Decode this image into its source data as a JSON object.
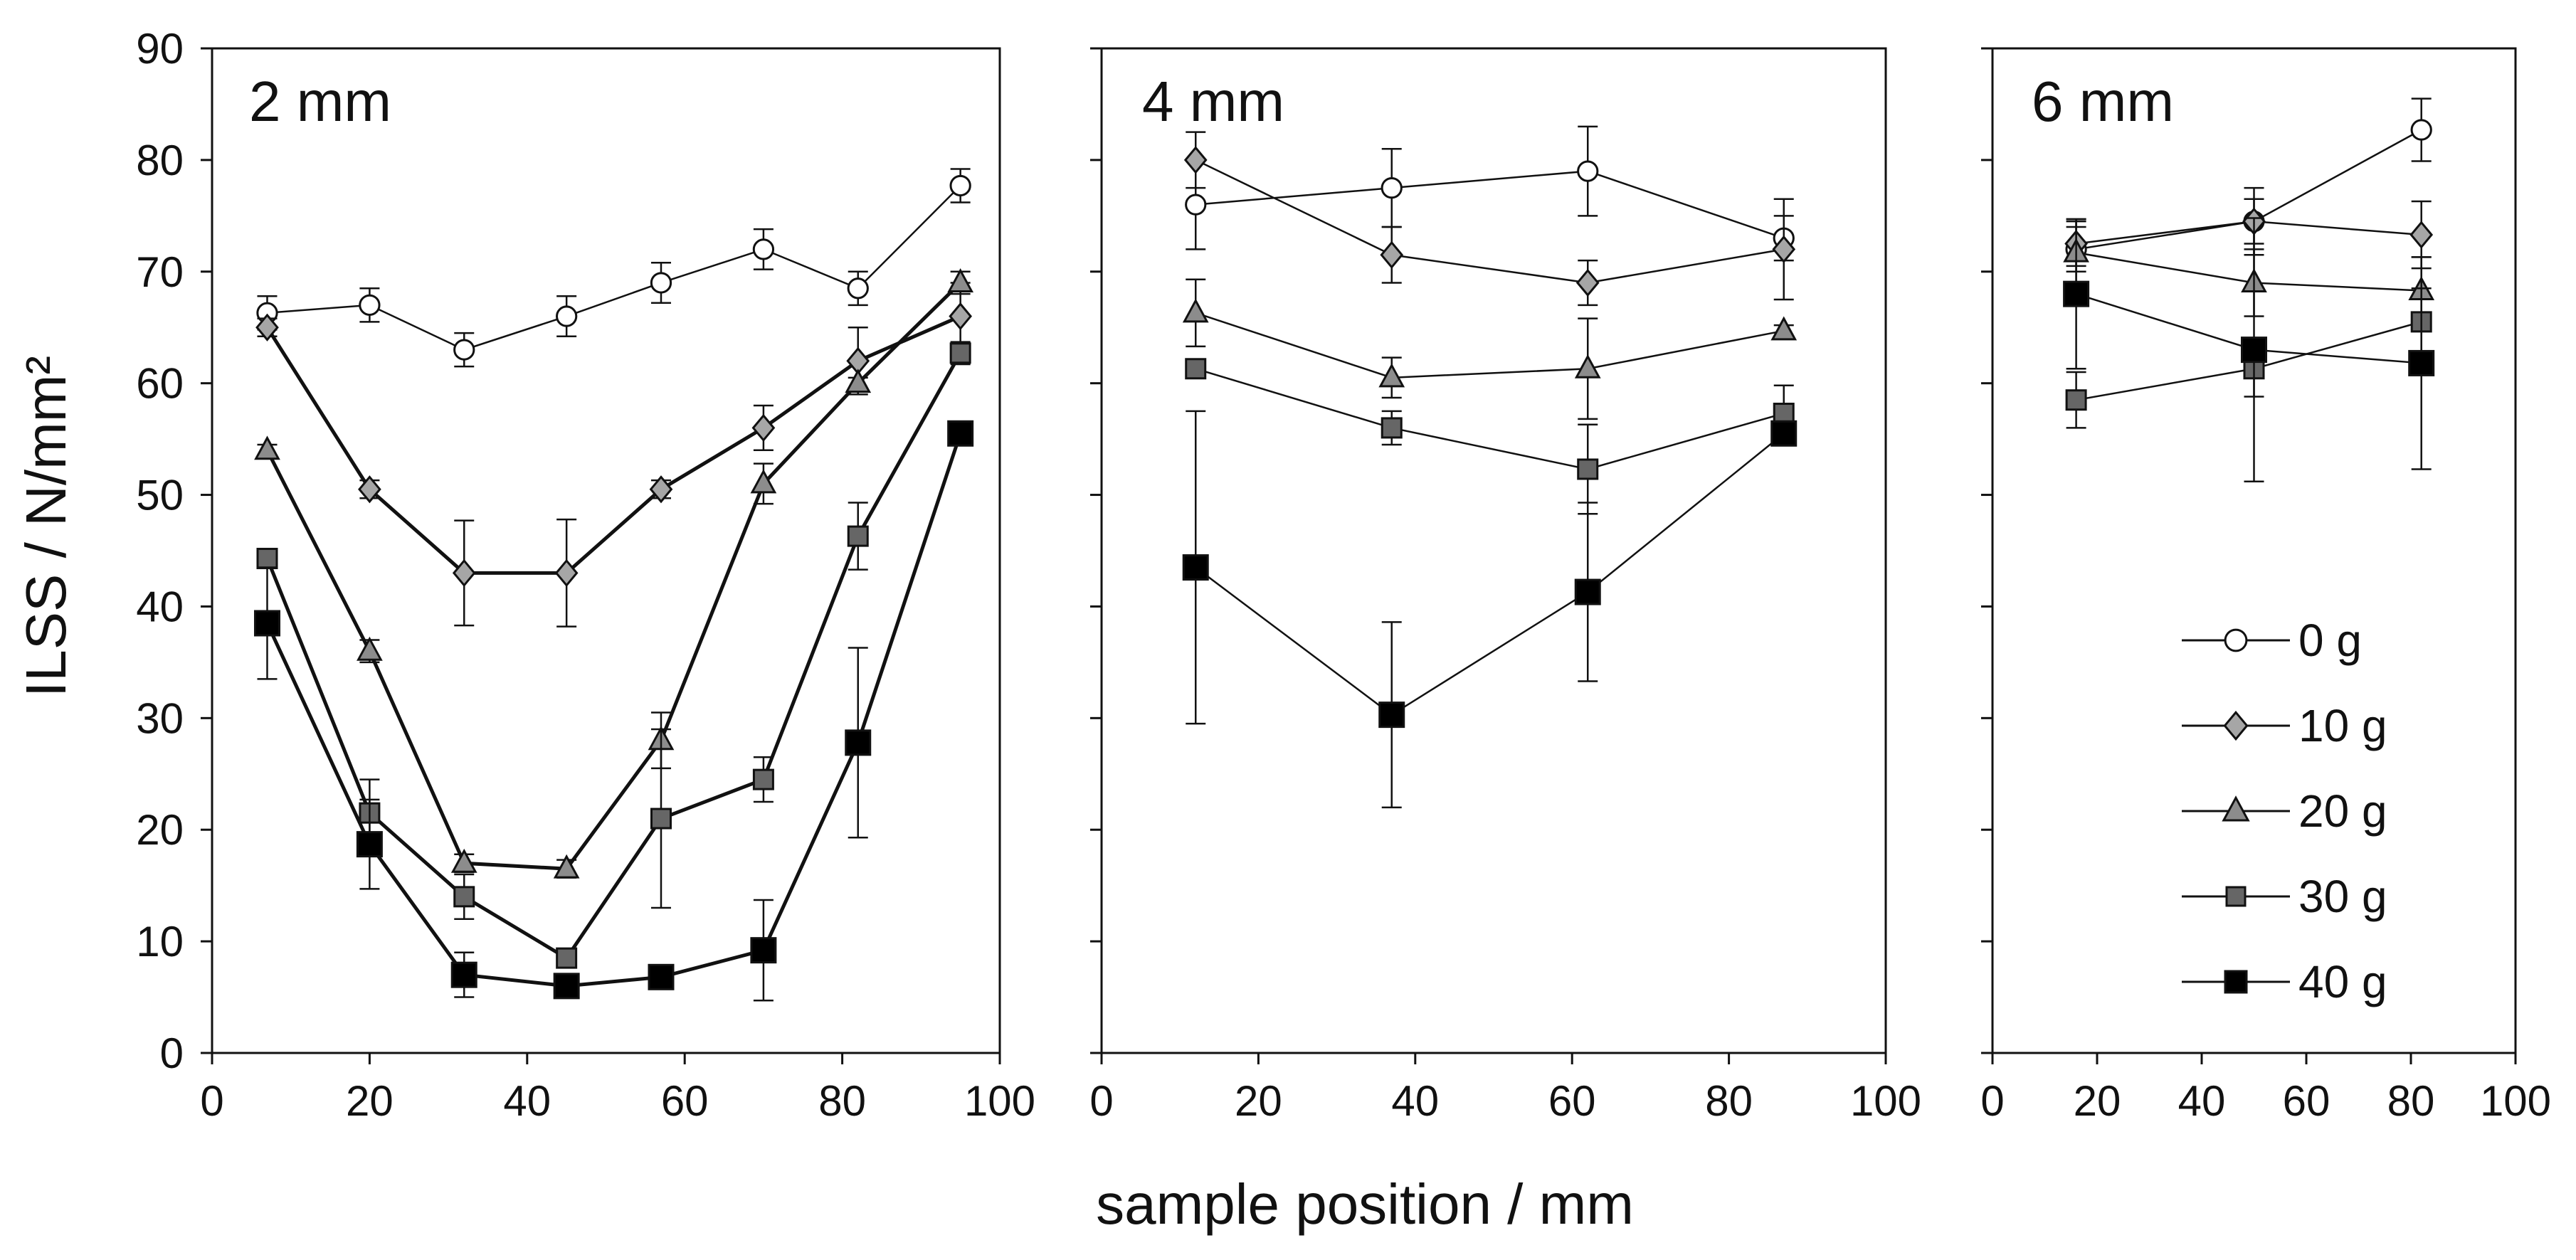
{
  "figure": {
    "ylabel": "ILSS  / N/mm²",
    "xlabel": "sample position / mm"
  },
  "colors": {
    "series": {
      "0 g": "#ffffff",
      "10 g": "#a6a6a6",
      "20 g": "#8c8c8c",
      "30 g": "#666666",
      "40 g": "#000000"
    },
    "outline": "#111111"
  },
  "legend": {
    "items": [
      {
        "label": "0 g",
        "marker": "circle",
        "fill": "#ffffff"
      },
      {
        "label": "10 g",
        "marker": "diamond",
        "fill": "#a6a6a6"
      },
      {
        "label": "20 g",
        "marker": "triangle",
        "fill": "#8c8c8c"
      },
      {
        "label": "30 g",
        "marker": "square",
        "fill": "#666666"
      },
      {
        "label": "40 g",
        "marker": "square",
        "fill": "#000000"
      }
    ]
  },
  "chart_data": [
    {
      "type": "line",
      "title": "2 mm",
      "xlabel": "sample position / mm",
      "ylabel": "ILSS  / N/mm²",
      "xlim": [
        0,
        100
      ],
      "ylim": [
        0,
        90
      ],
      "xticks": [
        0,
        20,
        40,
        60,
        80,
        100
      ],
      "yticks": [
        0,
        10,
        20,
        30,
        40,
        50,
        60,
        70,
        80,
        90
      ],
      "x": [
        7,
        20,
        32,
        45,
        57,
        70,
        82,
        95
      ],
      "series": [
        {
          "name": "0 g",
          "marker": "circle",
          "line_weight": "thin",
          "values": [
            66.3,
            67,
            63,
            66,
            69,
            72,
            68.5,
            77.7
          ],
          "errors": [
            1.5,
            1.5,
            1.5,
            1.8,
            1.8,
            1.8,
            1.5,
            1.5
          ]
        },
        {
          "name": "10 g",
          "marker": "diamond",
          "line_weight": "thick",
          "values": [
            65,
            50.5,
            43,
            43,
            50.5,
            56,
            62,
            66
          ],
          "errors": [
            0.8,
            0.8,
            4.7,
            4.8,
            0.8,
            2,
            3,
            3
          ]
        },
        {
          "name": "20 g",
          "marker": "triangle",
          "line_weight": "thick",
          "values": [
            54,
            36,
            17,
            16.5,
            28,
            51,
            60,
            69
          ],
          "errors": [
            0.5,
            1,
            0.8,
            0.8,
            2.5,
            1.8,
            0.5,
            1
          ]
        },
        {
          "name": "30 g",
          "marker": "square",
          "line_weight": "thick",
          "values": [
            44.3,
            21.5,
            14,
            8.5,
            21,
            24.5,
            46.3,
            62.7
          ],
          "errors": [
            0.5,
            3,
            2,
            0.5,
            8,
            2,
            3,
            1
          ]
        },
        {
          "name": "40 g",
          "marker": "square",
          "line_weight": "thick",
          "values": [
            38.5,
            18.7,
            7,
            6,
            6.8,
            9.2,
            27.8,
            55.5
          ],
          "errors": [
            5,
            4,
            2,
            0.8,
            0.8,
            4.5,
            8.5,
            1
          ]
        }
      ]
    },
    {
      "type": "line",
      "title": "4 mm",
      "xlim": [
        0,
        100
      ],
      "ylim": [
        0,
        90
      ],
      "xticks": [
        0,
        20,
        40,
        60,
        80,
        100
      ],
      "x": [
        12,
        37,
        62,
        87
      ],
      "series": [
        {
          "name": "0 g",
          "marker": "circle",
          "line_weight": "thin",
          "values": [
            76,
            77.5,
            79,
            73
          ],
          "errors": [
            4,
            3.5,
            4,
            2
          ]
        },
        {
          "name": "10 g",
          "marker": "diamond",
          "line_weight": "thin",
          "values": [
            80,
            71.5,
            69,
            72
          ],
          "errors": [
            2.5,
            2.5,
            2,
            4.5
          ]
        },
        {
          "name": "20 g",
          "marker": "triangle",
          "line_weight": "thin",
          "values": [
            66.3,
            60.5,
            61.3,
            64.7
          ],
          "errors": [
            3,
            1.8,
            4.5,
            0.5
          ]
        },
        {
          "name": "30 g",
          "marker": "square",
          "line_weight": "thin",
          "values": [
            61.3,
            56,
            52.3,
            57.3
          ],
          "errors": [
            0.5,
            1.5,
            4,
            2.5
          ]
        },
        {
          "name": "40 g",
          "marker": "square",
          "line_weight": "thin",
          "values": [
            43.5,
            30.3,
            41.3,
            55.5
          ],
          "errors": [
            14,
            8.3,
            8,
            0.5
          ]
        }
      ]
    },
    {
      "type": "line",
      "title": "6 mm",
      "xlim": [
        0,
        100
      ],
      "ylim": [
        0,
        90
      ],
      "xticks": [
        0,
        20,
        40,
        60,
        80,
        100
      ],
      "x": [
        16,
        50,
        82
      ],
      "series": [
        {
          "name": "0 g",
          "marker": "circle",
          "line_weight": "thin",
          "values": [
            72,
            74.5,
            82.7
          ],
          "errors": [
            2,
            2,
            2.8
          ]
        },
        {
          "name": "10 g",
          "marker": "diamond",
          "line_weight": "thin",
          "values": [
            72.5,
            74.5,
            73.3
          ],
          "errors": [
            2,
            3,
            3
          ]
        },
        {
          "name": "20 g",
          "marker": "triangle",
          "line_weight": "thin",
          "values": [
            71.7,
            69,
            68.3
          ],
          "errors": [
            3,
            3,
            3
          ]
        },
        {
          "name": "30 g",
          "marker": "square",
          "line_weight": "thin",
          "values": [
            58.5,
            61.3,
            65.5
          ],
          "errors": [
            2.5,
            2.5,
            3
          ]
        },
        {
          "name": "40 g",
          "marker": "square",
          "line_weight": "thin",
          "values": [
            68,
            63,
            61.8
          ],
          "errors": [
            6.7,
            11.8,
            9.5
          ]
        }
      ]
    }
  ]
}
